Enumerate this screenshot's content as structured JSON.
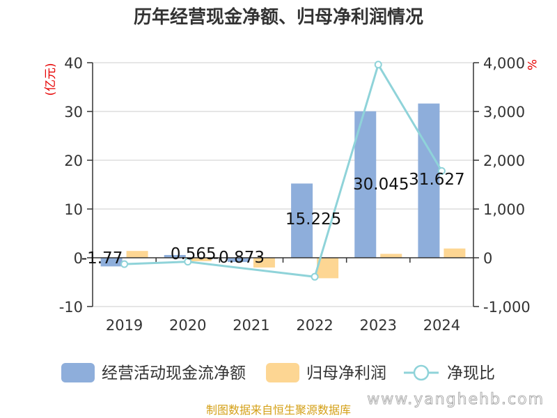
{
  "chart_data": {
    "type": "bar",
    "title": "历年经营现金净额、归母净利润情况",
    "categories": [
      "2019",
      "2020",
      "2021",
      "2022",
      "2023",
      "2024"
    ],
    "left_axis": {
      "unit": "(亿元)",
      "ylim": [
        -10,
        40
      ],
      "ticks": [
        "-10",
        "0",
        "10",
        "20",
        "30",
        "40"
      ]
    },
    "right_axis": {
      "unit": "%",
      "ylim": [
        -1000,
        4000
      ],
      "ticks": [
        "-1,000",
        "0",
        "1,000",
        "2,000",
        "3,000",
        "4,000"
      ]
    },
    "series": [
      {
        "name": "经营活动现金流净额",
        "type": "bar",
        "axis": "left",
        "color": "#8eaedb",
        "values": [
          -1.77,
          0.565,
          -0.873,
          15.225,
          30.045,
          31.627
        ],
        "labels": [
          "-1.77",
          "0.565",
          "-0.873",
          "15.225",
          "30.045",
          "31.627"
        ]
      },
      {
        "name": "归母净利润",
        "type": "bar",
        "axis": "left",
        "color": "#fdd693",
        "values": [
          1.4,
          -0.7,
          -2.0,
          -4.2,
          0.8,
          1.9
        ]
      },
      {
        "name": "净现比",
        "type": "line",
        "axis": "right",
        "color": "#8fd3d9",
        "values": [
          -130,
          -81,
          null,
          -390,
          3960,
          1780
        ]
      }
    ],
    "grid": true,
    "legend_position": "bottom"
  },
  "source_text": "制图数据来自恒生聚源数据库",
  "watermark_text": "www.yanghehb.com"
}
